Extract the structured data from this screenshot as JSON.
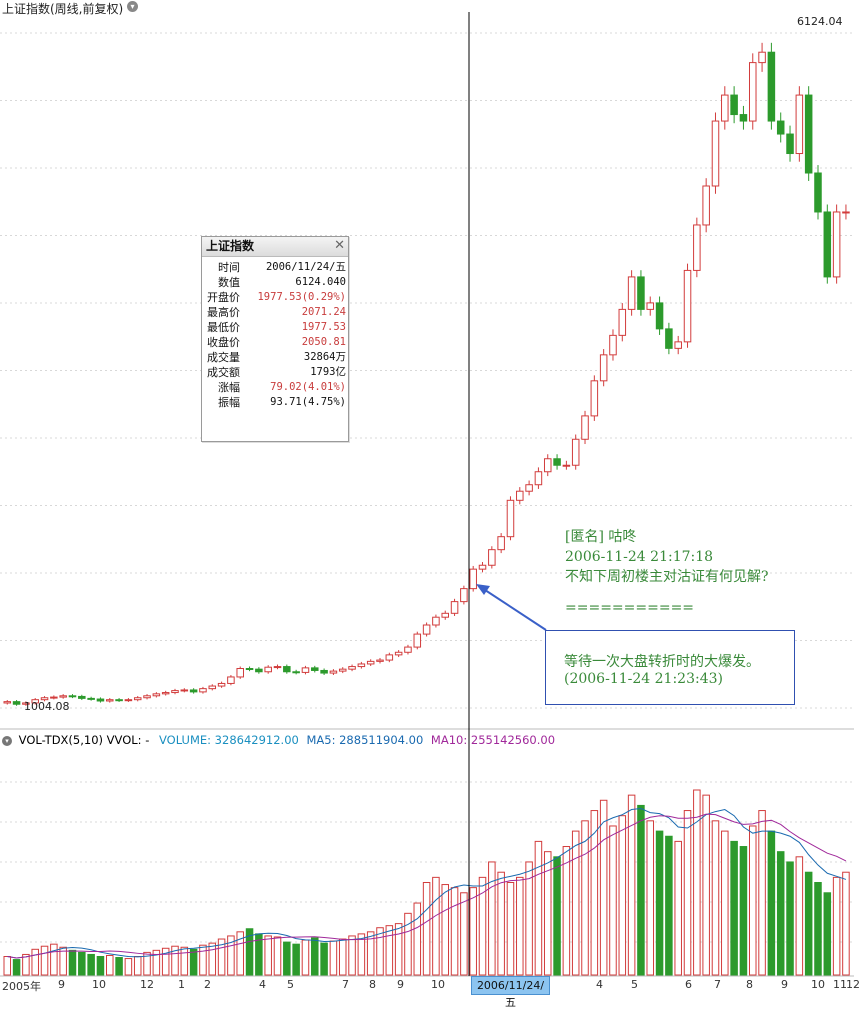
{
  "header": {
    "title": "上证指数(周线,前复权)",
    "menu_icon": "chevron-down-icon"
  },
  "price_panel": {
    "max_label": "6124.04",
    "min_label": "1004.08",
    "colors": {
      "up": "#d23c3c",
      "down": "#2c9a2c",
      "grid": "#d8d8d8",
      "crosshair": "#000000"
    }
  },
  "info_window": {
    "title": "上证指数",
    "close_icon": "close-icon",
    "rows": [
      {
        "key": "时间",
        "value": "2006/11/24/五",
        "color": "normal"
      },
      {
        "key": "数值",
        "value": "6124.040",
        "color": "normal"
      },
      {
        "key": "开盘价",
        "value": "1977.53(0.29%)",
        "color": "red"
      },
      {
        "key": "最高价",
        "value": "2071.24",
        "color": "red"
      },
      {
        "key": "最低价",
        "value": "1977.53",
        "color": "red"
      },
      {
        "key": "收盘价",
        "value": "2050.81",
        "color": "red"
      },
      {
        "key": "成交量",
        "value": "32864万",
        "color": "normal"
      },
      {
        "key": "成交额",
        "value": "1793亿",
        "color": "normal"
      },
      {
        "key": "涨幅",
        "value": "79.02(4.01%)",
        "color": "red"
      },
      {
        "key": "振幅",
        "value": "93.71(4.75%)",
        "color": "normal"
      }
    ]
  },
  "comment": {
    "author": "[匿名] 咕咚",
    "time": "2006-11-24 21:17:18",
    "text": "不知下周初楼主对沽证有何见解?",
    "separator": "==========="
  },
  "reply": {
    "text": "等待一次大盘转折时的大爆发。",
    "time": "(2006-11-24 21:23:43)"
  },
  "volume_panel": {
    "indicator": "VOL-TDX(5,10)",
    "vvol": "VVOL: -",
    "volume_label": "VOLUME: 328642912.00",
    "ma5_label": "MA5: 288511904.00",
    "ma10_label": "MA10: 255142560.00",
    "colors": {
      "volume": "#1a8fc0",
      "ma5": "#1a6ab0",
      "ma10": "#a0289a"
    }
  },
  "time_axis": {
    "labels": [
      "2005年",
      "9",
      "10",
      "12",
      "1",
      "2",
      "4",
      "5",
      "7",
      "8",
      "9",
      "10",
      "4",
      "5",
      "6",
      "7",
      "8",
      "9",
      "10",
      "11",
      "12"
    ],
    "highlight": "2006/11/24/五"
  },
  "chart_data": {
    "type": "candlestick",
    "title": "上证指数(周线,前复权)",
    "series": [
      {
        "name": "上证指数",
        "close": [
          1030,
          1010,
          1020,
          1045,
          1060,
          1065,
          1075,
          1070,
          1055,
          1050,
          1035,
          1045,
          1040,
          1045,
          1060,
          1075,
          1090,
          1100,
          1115,
          1120,
          1105,
          1130,
          1150,
          1170,
          1220,
          1285,
          1280,
          1260,
          1295,
          1300,
          1260,
          1255,
          1290,
          1270,
          1250,
          1265,
          1280,
          1300,
          1320,
          1340,
          1350,
          1390,
          1410,
          1450,
          1550,
          1620,
          1680,
          1710,
          1800,
          1900,
          2050,
          2080,
          2200,
          2300,
          2580,
          2650,
          2700,
          2800,
          2900,
          2850,
          2850,
          3050,
          3230,
          3500,
          3700,
          3850,
          4050,
          4300,
          4050,
          4100,
          3900,
          3750,
          3800,
          4350,
          4700,
          5000,
          5500,
          5700,
          5550,
          5500,
          5950,
          6030,
          5500,
          5400,
          5250,
          5700,
          5100,
          4800,
          4300,
          4800,
          4800
        ]
      }
    ],
    "ylim": [
      1004.08,
      6124.04
    ],
    "volume": [
      18,
      15,
      20,
      25,
      28,
      30,
      27,
      24,
      22,
      20,
      18,
      19,
      17,
      16,
      18,
      22,
      24,
      26,
      28,
      27,
      25,
      29,
      31,
      35,
      38,
      42,
      45,
      40,
      38,
      37,
      32,
      30,
      34,
      36,
      31,
      33,
      35,
      38,
      40,
      42,
      46,
      48,
      50,
      60,
      70,
      90,
      95,
      88,
      85,
      80,
      85,
      95,
      110,
      100,
      90,
      95,
      110,
      130,
      120,
      115,
      125,
      140,
      150,
      160,
      170,
      145,
      155,
      175,
      165,
      150,
      140,
      135,
      130,
      160,
      180,
      175,
      150,
      140,
      130,
      125,
      145,
      160,
      140,
      120,
      110,
      115,
      100,
      90,
      80,
      95,
      100
    ],
    "highlight_date": "2006/11/24"
  }
}
